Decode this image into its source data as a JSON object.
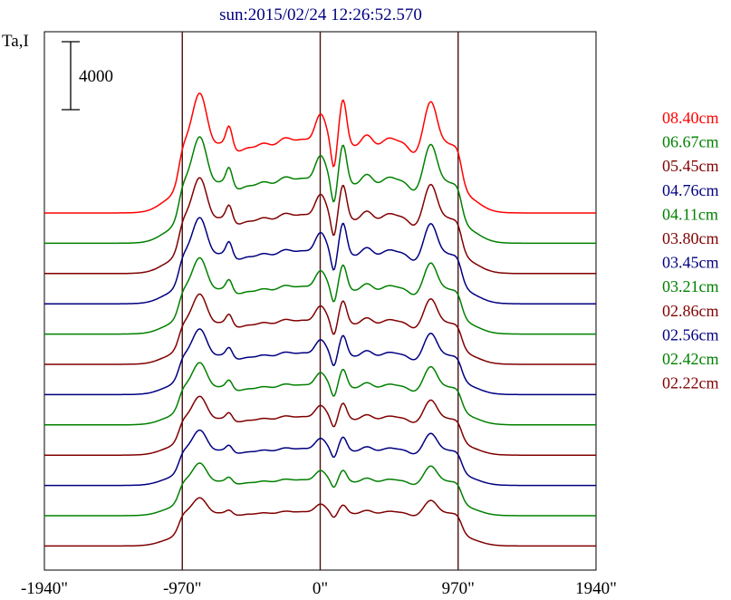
{
  "chart_data": {
    "type": "line",
    "title": "sun:2015/02/24 12:26:52.570",
    "ylabel": "Ta,I",
    "scale_bar_label": "4000",
    "scale_bar_value": 4000,
    "x_ticks": [
      {
        "value": -1940,
        "label": "-1940\""
      },
      {
        "value": -970,
        "label": "-970\""
      },
      {
        "value": 0,
        "label": "0\""
      },
      {
        "value": 970,
        "label": "970\""
      },
      {
        "value": 1940,
        "label": "1940\""
      }
    ],
    "xlim": [
      -1940,
      1940
    ],
    "vertical_lines": [
      -970,
      0,
      970
    ],
    "series": [
      {
        "name": "08.40cm",
        "color": "#ff0000",
        "baseline": 0,
        "amp": 1.0,
        "core": 1.0,
        "spike": 1.0
      },
      {
        "name": "06.67cm",
        "color": "#008000",
        "baseline": 1,
        "amp": 0.88,
        "core": 0.9,
        "spike": 0.85
      },
      {
        "name": "05.45cm",
        "color": "#800000",
        "baseline": 2,
        "amp": 0.8,
        "core": 0.8,
        "spike": 0.75
      },
      {
        "name": "04.76cm",
        "color": "#000080",
        "baseline": 3,
        "amp": 0.72,
        "core": 0.72,
        "spike": 0.7
      },
      {
        "name": "04.11cm",
        "color": "#008000",
        "baseline": 4,
        "amp": 0.65,
        "core": 0.62,
        "spike": 0.55
      },
      {
        "name": "03.80cm",
        "color": "#800000",
        "baseline": 5,
        "amp": 0.6,
        "core": 0.57,
        "spike": 0.5
      },
      {
        "name": "03.45cm",
        "color": "#000080",
        "baseline": 6,
        "amp": 0.57,
        "core": 0.52,
        "spike": 0.45
      },
      {
        "name": "03.21cm",
        "color": "#008000",
        "baseline": 7,
        "amp": 0.55,
        "core": 0.48,
        "spike": 0.4
      },
      {
        "name": "02.86cm",
        "color": "#800000",
        "baseline": 8,
        "amp": 0.53,
        "core": 0.44,
        "spike": 0.35
      },
      {
        "name": "02.56cm",
        "color": "#000080",
        "baseline": 9,
        "amp": 0.51,
        "core": 0.4,
        "spike": 0.3
      },
      {
        "name": "02.42cm",
        "color": "#008000",
        "baseline": 10,
        "amp": 0.5,
        "core": 0.36,
        "spike": 0.25
      },
      {
        "name": "02.22cm",
        "color": "#800000",
        "baseline": 11,
        "amp": 0.48,
        "core": 0.3,
        "spike": 0.18
      }
    ]
  }
}
